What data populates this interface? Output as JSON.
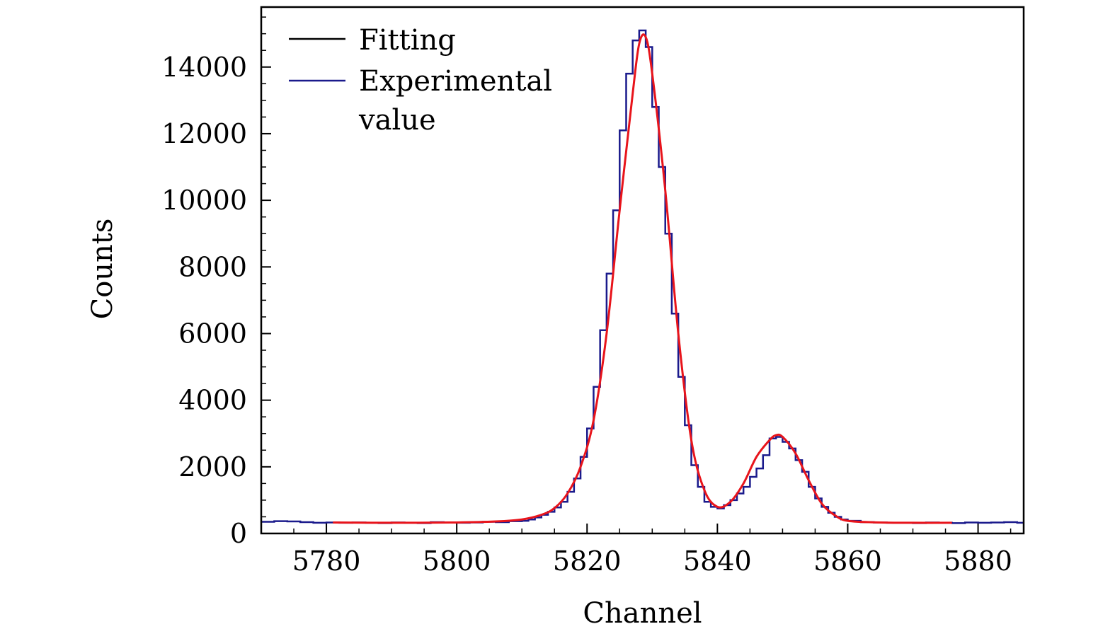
{
  "chart_data": {
    "type": "line",
    "xlabel": "Channel",
    "ylabel": "Counts",
    "xlim": [
      5770,
      5887
    ],
    "ylim": [
      0,
      15800
    ],
    "xticks": [
      5780,
      5800,
      5820,
      5840,
      5860,
      5880
    ],
    "yticks": [
      0,
      2000,
      4000,
      6000,
      8000,
      10000,
      12000,
      14000
    ],
    "grid": false,
    "legend_position": "top-left",
    "series": [
      {
        "name": "Fitting",
        "legend_color": "#000000",
        "color": "#e8141b",
        "style": "smooth",
        "x": [
          5781,
          5790,
          5800,
          5806,
          5810,
          5813,
          5815,
          5817,
          5819,
          5821,
          5823,
          5825,
          5827,
          5828,
          5829,
          5830,
          5832,
          5834,
          5836,
          5838,
          5840,
          5842,
          5844,
          5846,
          5848,
          5849,
          5850,
          5852,
          5854,
          5856,
          5858,
          5860,
          5865,
          5870,
          5876
        ],
        "y": [
          330,
          320,
          330,
          360,
          420,
          560,
          760,
          1200,
          2000,
          3400,
          6000,
          9700,
          13200,
          14700,
          14900,
          13800,
          10300,
          6000,
          2800,
          1300,
          800,
          950,
          1500,
          2300,
          2800,
          2950,
          2900,
          2400,
          1600,
          900,
          550,
          380,
          330,
          320,
          320
        ]
      },
      {
        "name": "Experimental value",
        "color": "#1a1a8c",
        "style": "step",
        "x": [
          5770,
          5772,
          5774,
          5776,
          5778,
          5780,
          5782,
          5784,
          5786,
          5788,
          5790,
          5792,
          5794,
          5796,
          5798,
          5800,
          5802,
          5804,
          5806,
          5808,
          5810,
          5811,
          5812,
          5813,
          5814,
          5815,
          5816,
          5817,
          5818,
          5819,
          5820,
          5821,
          5822,
          5823,
          5824,
          5825,
          5826,
          5827,
          5828,
          5829,
          5830,
          5831,
          5832,
          5833,
          5834,
          5835,
          5836,
          5837,
          5838,
          5839,
          5840,
          5841,
          5842,
          5843,
          5844,
          5845,
          5846,
          5847,
          5848,
          5849,
          5850,
          5851,
          5852,
          5853,
          5854,
          5855,
          5856,
          5857,
          5858,
          5859,
          5860,
          5862,
          5864,
          5866,
          5868,
          5870,
          5872,
          5874,
          5876,
          5878,
          5880,
          5882,
          5884,
          5886
        ],
        "y": [
          350,
          370,
          360,
          340,
          320,
          330,
          320,
          330,
          320,
          310,
          330,
          320,
          310,
          340,
          330,
          320,
          330,
          350,
          340,
          370,
          380,
          420,
          480,
          560,
          650,
          780,
          950,
          1250,
          1650,
          2300,
          3150,
          4400,
          6100,
          7800,
          9700,
          12100,
          13800,
          14800,
          15100,
          14600,
          12800,
          11000,
          9000,
          6600,
          4700,
          3250,
          2050,
          1400,
          950,
          800,
          750,
          850,
          1000,
          1200,
          1400,
          1700,
          1950,
          2350,
          2850,
          2900,
          2750,
          2550,
          2200,
          1850,
          1400,
          1050,
          800,
          620,
          500,
          420,
          380,
          340,
          330,
          320,
          320,
          310,
          330,
          320,
          310,
          330,
          320,
          330,
          340,
          320
        ]
      }
    ]
  },
  "legend": {
    "items": [
      {
        "label": "Fitting",
        "color": "#000000"
      },
      {
        "label": "Experimental",
        "label_line2": "value",
        "color": "#1a1a8c"
      }
    ]
  }
}
